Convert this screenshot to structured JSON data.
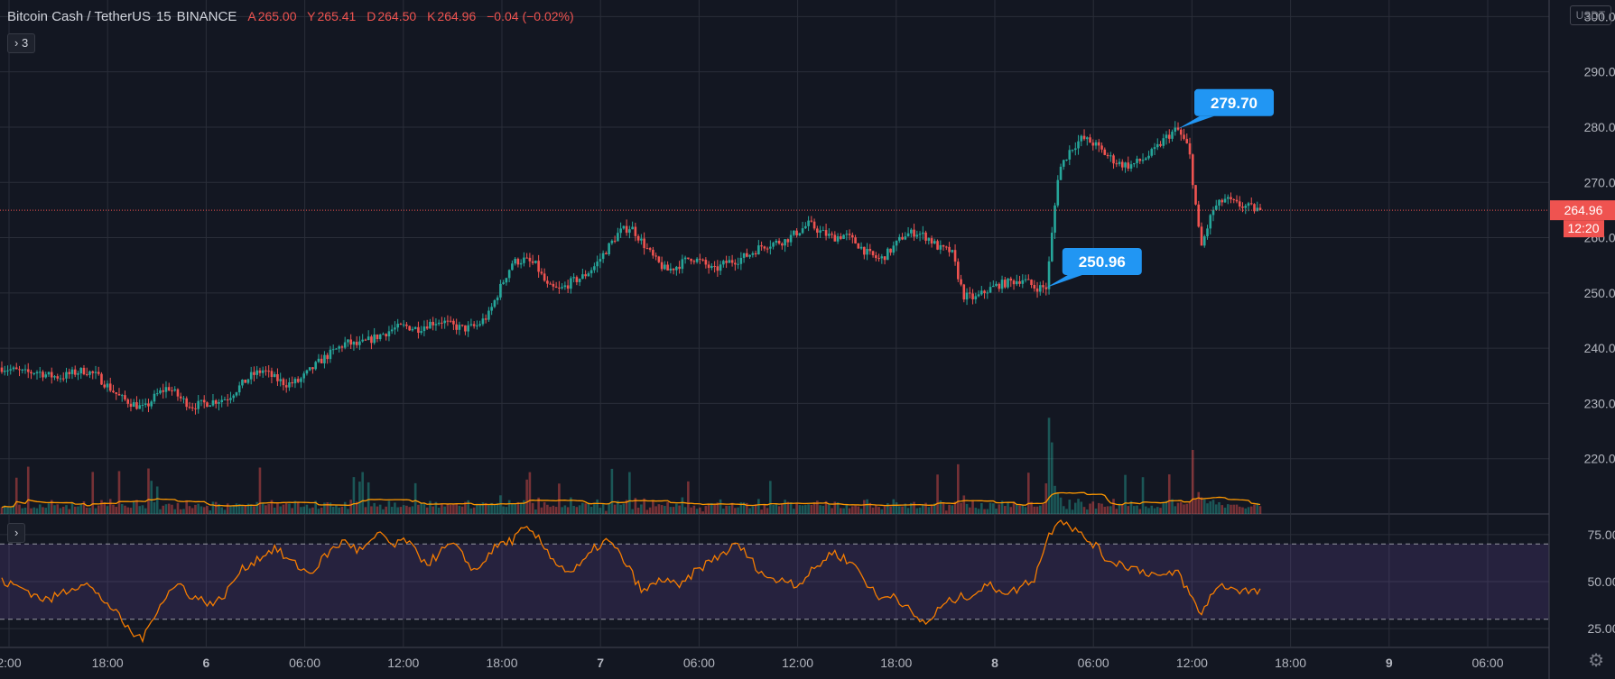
{
  "legend": {
    "symbol": "Bitcoin Cash / TetherUS",
    "interval": "15",
    "exchange": "BINANCE",
    "open_label": "A",
    "open": "265.00",
    "high_label": "Y",
    "high": "265.41",
    "low_label": "D",
    "low": "264.50",
    "close_label": "K",
    "close": "264.96",
    "change": "−0.04 (−0.02%)"
  },
  "indicators_toggle": "3",
  "rsi_toggle": "",
  "currency": "USDT",
  "colors": {
    "up": "#26a69a",
    "down": "#ef5350",
    "volume_ma": "#ff9800",
    "rsi": "#f57c00",
    "rsi_band": "#7e57c2",
    "callout": "#2196f3",
    "bg": "#131722",
    "grid": "#2a2e39"
  },
  "chart_data": [
    {
      "type": "candlestick",
      "title": "Bitcoin Cash / TetherUS",
      "y_ticks": [
        "300.00",
        "290.00",
        "280.00",
        "270.00",
        "250.00",
        "240.00",
        "230.00",
        "220.00"
      ],
      "ylim": [
        210,
        303
      ],
      "x_ticks": [
        "2:00",
        "18:00",
        "6",
        "06:00",
        "12:00",
        "18:00",
        "7",
        "06:00",
        "12:00",
        "18:00",
        "8",
        "06:00",
        "12:00",
        "18:00",
        "9",
        "06:00"
      ],
      "last_price": "264.96",
      "countdown": "12:20",
      "partially_hidden_tick": "260.00",
      "annotations": [
        {
          "label": "250.96",
          "value": 250.96
        },
        {
          "label": "279.70",
          "value": 279.7
        }
      ],
      "price_path": [
        236.5,
        236.0,
        235.5,
        235.8,
        235.0,
        234.8,
        235.5,
        236.0,
        235.0,
        233.0,
        231.0,
        230.0,
        229.0,
        231.5,
        233.0,
        231.0,
        229.5,
        230.0,
        230.5,
        231.0,
        233.0,
        235.0,
        236.0,
        234.5,
        233.5,
        234.0,
        236.0,
        238.0,
        239.5,
        241.0,
        240.5,
        241.5,
        242.5,
        243.5,
        244.0,
        243.5,
        244.5,
        245.0,
        244.0,
        243.5,
        244.0,
        246.0,
        251.0,
        255.5,
        256.0,
        255.0,
        251.0,
        250.5,
        252.0,
        253.0,
        255.0,
        258.0,
        261.0,
        262.0,
        259.0,
        256.0,
        254.0,
        255.0,
        256.5,
        255.5,
        254.0,
        255.5,
        256.0,
        257.0,
        258.5,
        259.0,
        259.5,
        261.0,
        262.5,
        261.0,
        260.0,
        260.5,
        259.0,
        257.0,
        256.0,
        258.0,
        260.5,
        261.0,
        260.0,
        258.0,
        257.5,
        249.5,
        249.0,
        250.5,
        251.5,
        252.0,
        252.5,
        251.0,
        250.96,
        272.0,
        276.0,
        278.0,
        277.0,
        275.0,
        273.5,
        273.0,
        274.0,
        275.5,
        278.0,
        279.7,
        276.0,
        258.0,
        265.0,
        267.0,
        266.0,
        265.5,
        264.96
      ],
      "volume_ma_label": ""
    },
    {
      "type": "line",
      "title": "",
      "y_ticks": [
        "75.00",
        "50.00",
        "25.00"
      ],
      "ylim": [
        15,
        85
      ],
      "overbought": 70,
      "oversold": 30,
      "rsi_path": [
        50,
        48,
        46,
        42,
        40,
        44,
        47,
        50,
        43,
        38,
        30,
        22,
        20,
        35,
        44,
        49,
        42,
        40,
        38,
        45,
        55,
        60,
        64,
        68,
        62,
        58,
        54,
        62,
        68,
        72,
        66,
        70,
        76,
        68,
        73,
        64,
        60,
        66,
        70,
        62,
        55,
        65,
        70,
        72,
        78,
        74,
        66,
        58,
        55,
        60,
        68,
        72,
        65,
        55,
        44,
        49,
        52,
        46,
        53,
        58,
        62,
        66,
        70,
        62,
        55,
        50,
        52,
        48,
        54,
        60,
        66,
        62,
        58,
        48,
        40,
        44,
        38,
        30,
        28,
        36,
        40,
        42,
        44,
        48,
        46,
        44,
        48,
        52,
        72,
        84,
        80,
        74,
        70,
        62,
        60,
        58,
        56,
        54,
        52,
        56,
        44,
        32,
        45,
        48,
        46,
        45,
        44
      ]
    }
  ]
}
